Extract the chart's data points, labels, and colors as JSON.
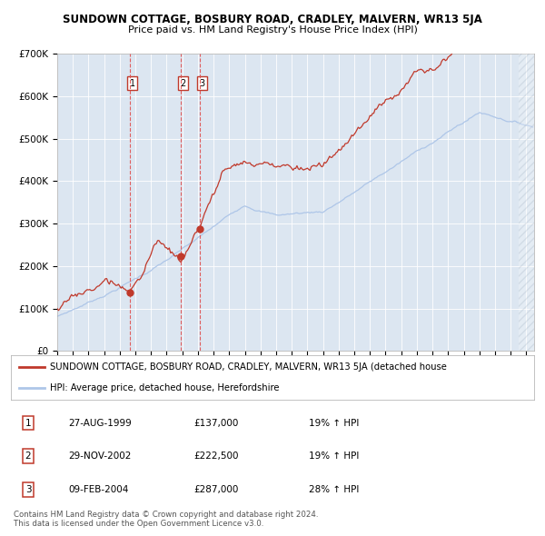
{
  "title": "SUNDOWN COTTAGE, BOSBURY ROAD, CRADLEY, MALVERN, WR13 5JA",
  "subtitle": "Price paid vs. HM Land Registry's House Price Index (HPI)",
  "bg_color": "#dce6f1",
  "red_line_color": "#c0392b",
  "blue_line_color": "#aec6e8",
  "purchase_dates": [
    1999.65,
    2002.91,
    2004.11
  ],
  "purchase_prices": [
    137000,
    222500,
    287000
  ],
  "purchase_labels": [
    "1",
    "2",
    "3"
  ],
  "legend_red": "SUNDOWN COTTAGE, BOSBURY ROAD, CRADLEY, MALVERN, WR13 5JA (detached house",
  "legend_blue": "HPI: Average price, detached house, Herefordshire",
  "table_rows": [
    [
      "1",
      "27-AUG-1999",
      "£137,000",
      "19% ↑ HPI"
    ],
    [
      "2",
      "29-NOV-2002",
      "£222,500",
      "19% ↑ HPI"
    ],
    [
      "3",
      "09-FEB-2004",
      "£287,000",
      "28% ↑ HPI"
    ]
  ],
  "footer": "Contains HM Land Registry data © Crown copyright and database right 2024.\nThis data is licensed under the Open Government Licence v3.0.",
  "ylim": [
    0,
    700000
  ],
  "yticks": [
    0,
    100000,
    200000,
    300000,
    400000,
    500000,
    600000,
    700000
  ],
  "ytick_labels": [
    "£0",
    "£100K",
    "£200K",
    "£300K",
    "£400K",
    "£500K",
    "£600K",
    "£700K"
  ],
  "xstart": 1995.0,
  "xend": 2025.5
}
